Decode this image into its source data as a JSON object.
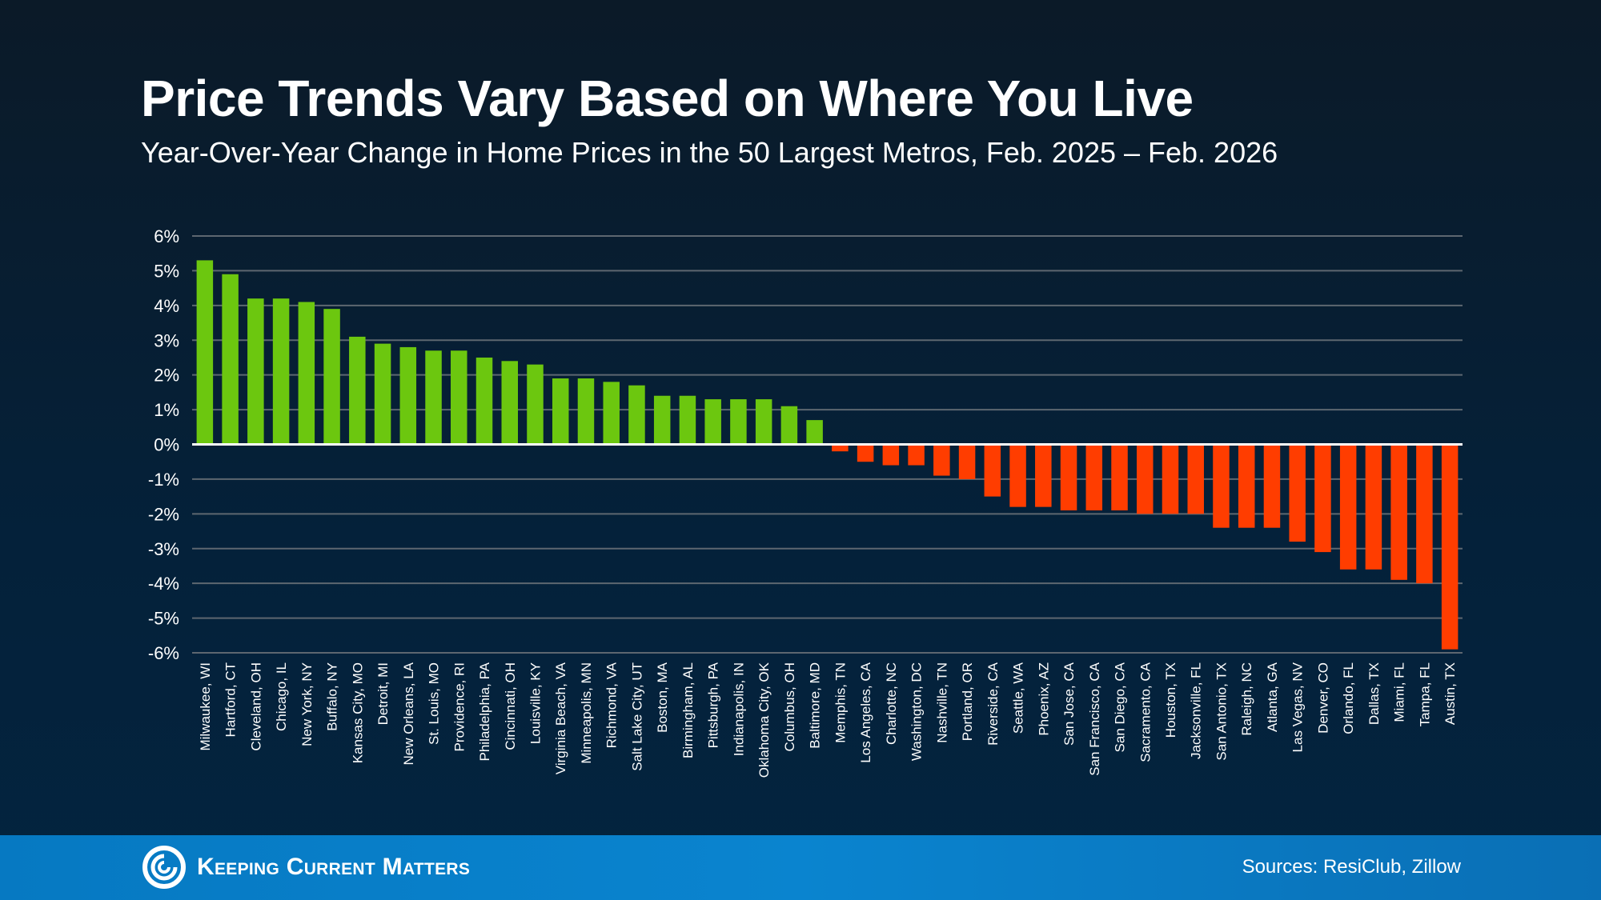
{
  "header": {
    "title": "Price Trends Vary Based on Where You Live",
    "subtitle": "Year-Over-Year Change in Home Prices in the 50 Largest Metros, Feb. 2025 – Feb. 2026"
  },
  "chart_data": {
    "type": "bar",
    "title": "",
    "xlabel": "",
    "ylabel": "",
    "ylim": [
      -6,
      6
    ],
    "yticks": [
      "6%",
      "5%",
      "4%",
      "3%",
      "2%",
      "1%",
      "0%",
      "-1%",
      "-2%",
      "-3%",
      "-4%",
      "-5%",
      "-6%"
    ],
    "grid": true,
    "colors": {
      "positive": "#6cc70f",
      "negative": "#ff3d00",
      "zero_line": "#ffffff",
      "grid": "#5d6770"
    },
    "categories": [
      "Milwaukee, WI",
      "Hartford, CT",
      "Cleveland, OH",
      "Chicago, IL",
      "New York, NY",
      "Buffalo, NY",
      "Kansas City, MO",
      "Detroit, MI",
      "New Orleans, LA",
      "St. Louis, MO",
      "Providence, RI",
      "Philadelphia, PA",
      "Cincinnati, OH",
      "Louisville, KY",
      "Virginia Beach, VA",
      "Minneapolis, MN",
      "Richmond, VA",
      "Salt Lake City, UT",
      "Boston, MA",
      "Birmingham, AL",
      "Pittsburgh, PA",
      "Indianapolis, IN",
      "Oklahoma City, OK",
      "Columbus, OH",
      "Baltimore, MD",
      "Memphis, TN",
      "Los Angeles, CA",
      "Charlotte, NC",
      "Washington, DC",
      "Nashville, TN",
      "Portland, OR",
      "Riverside, CA",
      "Seattle, WA",
      "Phoenix, AZ",
      "San Jose, CA",
      "San Francisco, CA",
      "San Diego, CA",
      "Sacramento, CA",
      "Houston, TX",
      "Jacksonville, FL",
      "San Antonio, TX",
      "Raleigh, NC",
      "Atlanta, GA",
      "Las Vegas, NV",
      "Denver, CO",
      "Orlando, FL",
      "Dallas, TX",
      "Miami, FL",
      "Tampa, FL",
      "Austin, TX"
    ],
    "values": [
      5.3,
      4.9,
      4.2,
      4.2,
      4.1,
      3.9,
      3.1,
      2.9,
      2.8,
      2.7,
      2.7,
      2.5,
      2.4,
      2.3,
      1.9,
      1.9,
      1.8,
      1.7,
      1.4,
      1.4,
      1.3,
      1.3,
      1.3,
      1.1,
      0.7,
      -0.2,
      -0.5,
      -0.6,
      -0.6,
      -0.9,
      -1.0,
      -1.5,
      -1.8,
      -1.8,
      -1.9,
      -1.9,
      -1.9,
      -2.0,
      -2.0,
      -2.0,
      -2.4,
      -2.4,
      -2.4,
      -2.8,
      -3.1,
      -3.6,
      -3.6,
      -3.9,
      -4.0,
      -5.9
    ]
  },
  "footer": {
    "brand": "Keeping Current Matters",
    "sources": "Sources: ResiClub, Zillow"
  }
}
